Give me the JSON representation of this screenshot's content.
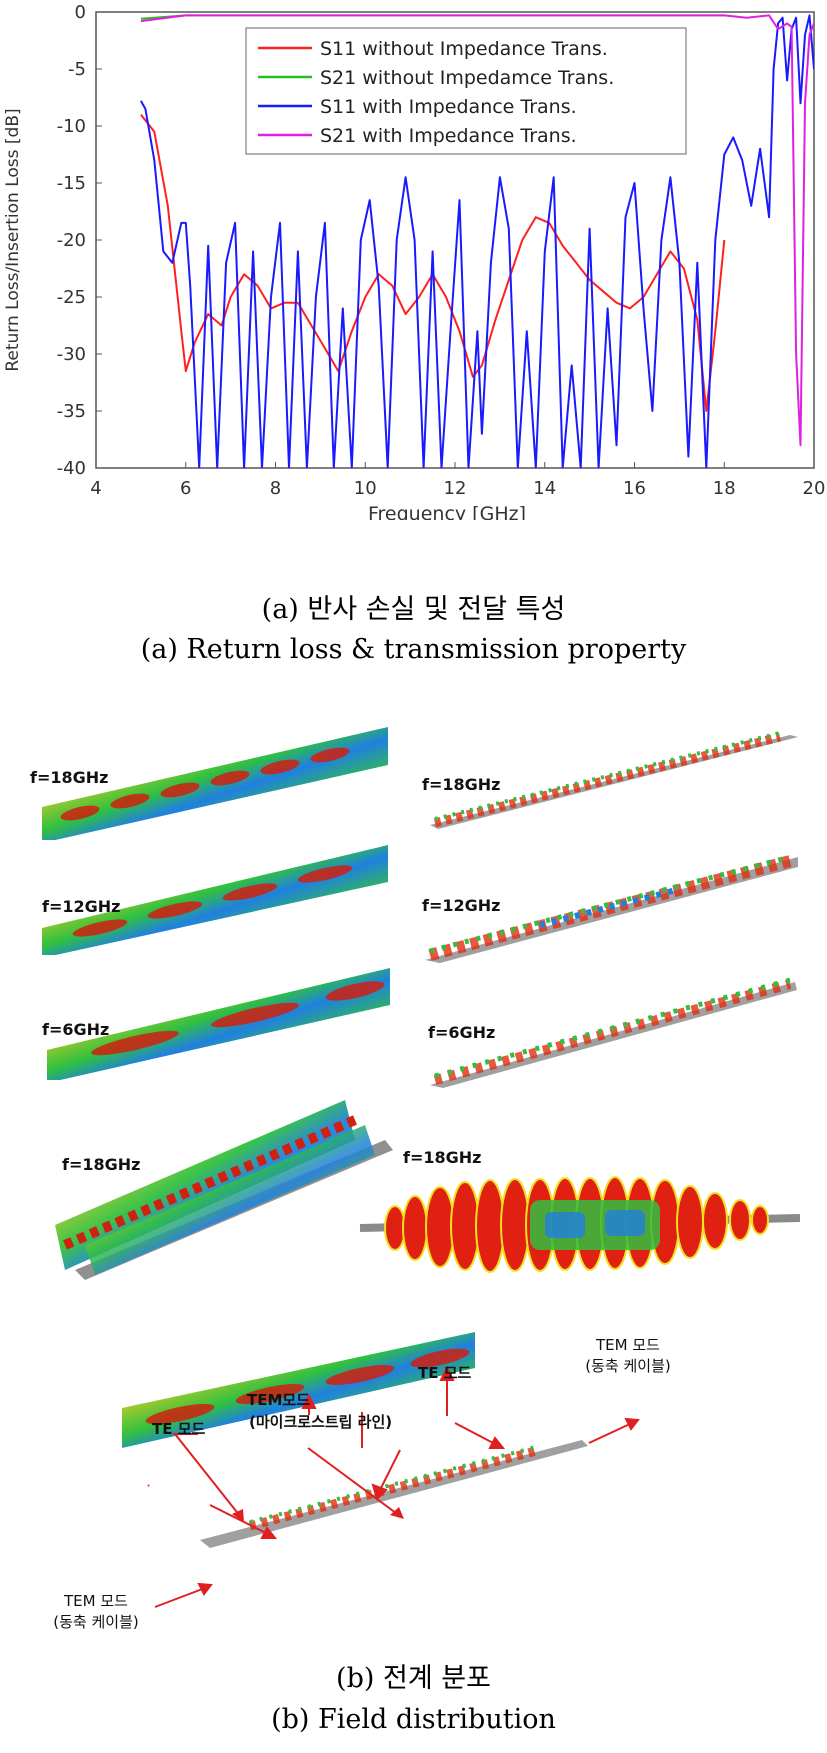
{
  "chart_data": {
    "type": "line",
    "xlabel": "Frequency [GHz]",
    "ylabel": "Return Loss/Insertion Loss [dB]",
    "xlim": [
      4,
      20
    ],
    "ylim": [
      -40,
      0
    ],
    "xticks": [
      "4",
      "6",
      "8",
      "10",
      "12",
      "14",
      "16",
      "18",
      "20"
    ],
    "yticks": [
      "0",
      "-5",
      "-10",
      "-15",
      "-20",
      "-25",
      "-30",
      "-35",
      "-40"
    ],
    "grid": false,
    "legend_position": "top-right",
    "series": [
      {
        "name": "S11 without Impedance Trans.",
        "color": "#ff2020",
        "x": [
          5.0,
          5.3,
          5.6,
          5.9,
          6.0,
          6.2,
          6.5,
          6.8,
          7.0,
          7.3,
          7.6,
          7.9,
          8.2,
          8.5,
          8.8,
          9.1,
          9.4,
          9.7,
          10.0,
          10.3,
          10.6,
          10.9,
          11.2,
          11.5,
          11.8,
          12.1,
          12.4,
          12.6,
          12.9,
          13.2,
          13.5,
          13.8,
          14.1,
          14.4,
          14.7,
          15.0,
          15.3,
          15.6,
          15.9,
          16.2,
          16.5,
          16.8,
          17.1,
          17.4,
          17.6,
          17.8,
          18.0
        ],
        "values": [
          -9,
          -10.5,
          -17,
          -28,
          -31.5,
          -29,
          -26.5,
          -27.5,
          -25,
          -23,
          -24,
          -26,
          -25.5,
          -25.5,
          -27.5,
          -29.5,
          -31.5,
          -28,
          -25,
          -23,
          -24,
          -26.5,
          -25,
          -23,
          -25,
          -28,
          -32,
          -31,
          -27,
          -23.5,
          -20,
          -18,
          -18.5,
          -20.5,
          -22,
          -23.5,
          -24.5,
          -25.5,
          -26,
          -25,
          -23,
          -21,
          -22.5,
          -27,
          -35,
          -28,
          -20
        ]
      },
      {
        "name": "S21 without Impedamce Trans.",
        "color": "#20c020",
        "x": [
          5.0,
          6.0,
          8.0,
          10.0,
          12.0,
          14.0,
          16.0,
          18.0
        ],
        "values": [
          -0.6,
          -0.3,
          -0.3,
          -0.3,
          -0.3,
          -0.3,
          -0.3,
          -0.3
        ]
      },
      {
        "name": "S11 with Impedance Trans.",
        "color": "#1a1aff",
        "x": [
          5.0,
          5.1,
          5.3,
          5.5,
          5.7,
          5.9,
          6.0,
          6.1,
          6.3,
          6.5,
          6.7,
          6.9,
          7.1,
          7.3,
          7.5,
          7.7,
          7.9,
          8.1,
          8.3,
          8.5,
          8.7,
          8.9,
          9.1,
          9.3,
          9.5,
          9.7,
          9.9,
          10.1,
          10.3,
          10.5,
          10.7,
          10.9,
          11.1,
          11.3,
          11.5,
          11.7,
          11.9,
          12.1,
          12.3,
          12.5,
          12.6,
          12.8,
          13.0,
          13.2,
          13.4,
          13.6,
          13.8,
          14.0,
          14.2,
          14.4,
          14.6,
          14.8,
          15.0,
          15.2,
          15.4,
          15.6,
          15.8,
          16.0,
          16.2,
          16.4,
          16.6,
          16.8,
          17.0,
          17.2,
          17.4,
          17.6,
          17.8,
          18.0,
          18.2,
          18.4,
          18.6,
          18.8,
          19.0,
          19.1,
          19.2,
          19.3,
          19.4,
          19.5,
          19.6,
          19.7,
          19.8,
          19.9,
          20.0
        ],
        "values": [
          -7.8,
          -8.5,
          -13,
          -21,
          -22,
          -18.5,
          -18.5,
          -24,
          -40,
          -20.5,
          -40,
          -22,
          -18.5,
          -40,
          -21,
          -40,
          -25,
          -18.5,
          -40,
          -21,
          -40,
          -25,
          -18.5,
          -40,
          -26,
          -40,
          -20,
          -16.5,
          -24,
          -40,
          -20,
          -14.5,
          -20,
          -40,
          -21,
          -40,
          -28,
          -16.5,
          -40,
          -28,
          -37,
          -22,
          -14.5,
          -19,
          -40,
          -28,
          -40,
          -21,
          -14.5,
          -40,
          -31,
          -40,
          -19,
          -40,
          -26,
          -38,
          -18,
          -15,
          -26,
          -35,
          -20,
          -14.5,
          -22,
          -39,
          -22,
          -40,
          -20,
          -12.5,
          -11,
          -13,
          -17,
          -12,
          -18,
          -5,
          -1,
          -0.5,
          -6,
          -1.5,
          -0.5,
          -8,
          -2,
          -0.3,
          -5
        ]
      },
      {
        "name": "S21 with Impedance Trans.",
        "color": "#e020e0",
        "x": [
          5.0,
          6.0,
          8.0,
          10.0,
          12.0,
          14.0,
          16.0,
          18.0,
          18.5,
          19.0,
          19.2,
          19.4,
          19.5,
          19.6,
          19.7,
          19.8,
          19.9,
          20.0
        ],
        "values": [
          -0.8,
          -0.3,
          -0.3,
          -0.3,
          -0.3,
          -0.3,
          -0.3,
          -0.3,
          -0.5,
          -0.3,
          -1.5,
          -1,
          -1.3,
          -30,
          -38,
          -8,
          -2,
          -1
        ]
      }
    ]
  },
  "captions": {
    "a_korean": "(a) 반사 손실 및 전달 특성",
    "a_english": "(a) Return loss & transmission property",
    "b_korean": "(b) 전계 분포",
    "b_english": "(b) Field distribution"
  },
  "field_labels": {
    "left_18": "f=18GHz",
    "left_12": "f=12GHz",
    "left_6": "f=6GHz",
    "right_18": "f=18GHz",
    "right_12": "f=12GHz",
    "right_6": "f=6GHz",
    "left_3d": "f=18GHz",
    "right_3d": "f=18GHz"
  },
  "annotations": {
    "te_mode_right": "TE 모드",
    "tem_mode_center": "TEM모드",
    "microstrip": "(마이크로스트립 라인)",
    "te_mode_left": "TE 모드",
    "tem_mode_right_1": "TEM 모드",
    "tem_mode_right_2": "(동축 케이블)",
    "tem_mode_left_1": "TEM 모드",
    "tem_mode_left_2": "(동축 케이블)"
  }
}
